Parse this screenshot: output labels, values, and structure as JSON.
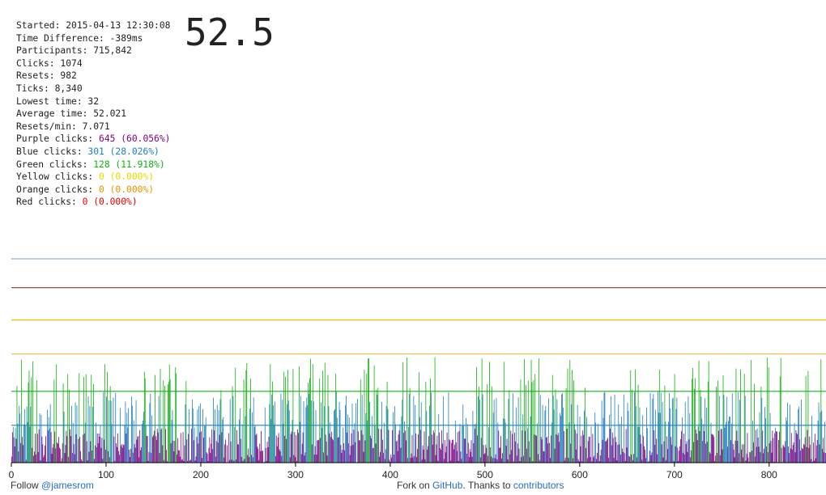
{
  "stats": {
    "started": {
      "label": "Started: ",
      "value": "2015-04-13 12:30:08"
    },
    "time_difference": {
      "label": "Time Difference: ",
      "value": "-389ms"
    },
    "participants": {
      "label": "Participants: ",
      "value": "715,842"
    },
    "clicks": {
      "label": "Clicks: ",
      "value": "1074"
    },
    "resets": {
      "label": "Resets: ",
      "value": "982"
    },
    "ticks": {
      "label": "Ticks: ",
      "value": "8,340"
    },
    "lowest_time": {
      "label": "Lowest time: ",
      "value": "32"
    },
    "average_time": {
      "label": "Average time: ",
      "value": "52.021"
    },
    "resets_per_min": {
      "label": "Resets/min: ",
      "value": "7.071"
    },
    "purple": {
      "label": "Purple clicks: ",
      "value": "645 (60.056%)",
      "color": "#820080"
    },
    "blue": {
      "label": "Blue clicks: ",
      "value": "301 (28.026%)",
      "color": "#1f7fc2"
    },
    "green": {
      "label": "Green clicks: ",
      "value": "128 (11.918%)",
      "color": "#12b012"
    },
    "yellow": {
      "label": "Yellow clicks: ",
      "value": "0 (0.000%)",
      "color": "#e5d900"
    },
    "orange": {
      "label": "Orange clicks: ",
      "value": "0 (0.000%)",
      "color": "#e59400"
    },
    "red": {
      "label": "Red clicks: ",
      "value": "0 (0.000%)",
      "color": "#e00000"
    }
  },
  "timer": {
    "value": "52.5"
  },
  "footer": {
    "follow_text": "Follow ",
    "follow_link": "@jamesrom",
    "fork_text": "Fork on ",
    "github_link": "GitHub",
    "thanks_text": ". Thanks to ",
    "contributors_link": "contributors"
  },
  "chart_data": {
    "type": "bar",
    "xlim": [
      0,
      860
    ],
    "ylim": [
      0,
      60
    ],
    "x_ticks": [
      0,
      100,
      200,
      300,
      400,
      500,
      600,
      700,
      800
    ],
    "reference_lines": [
      {
        "value": 60,
        "color": "#8fb0c8"
      },
      {
        "value": 51.5,
        "color": "#9b3030"
      },
      {
        "value": 42,
        "color": "#e5c000"
      },
      {
        "value": 32,
        "color": "#e8c850"
      },
      {
        "value": 21,
        "color": "#12b012"
      },
      {
        "value": 11,
        "color": "#1f7fc2"
      }
    ],
    "series": [
      {
        "color": "#820080",
        "min": 0,
        "max": 10,
        "count": 645
      },
      {
        "color": "#1f7fc2",
        "min": 10,
        "max": 21,
        "count": 301
      },
      {
        "color": "#12b012",
        "min": 21,
        "max": 31,
        "count": 128
      }
    ],
    "bar_count": 1074
  }
}
